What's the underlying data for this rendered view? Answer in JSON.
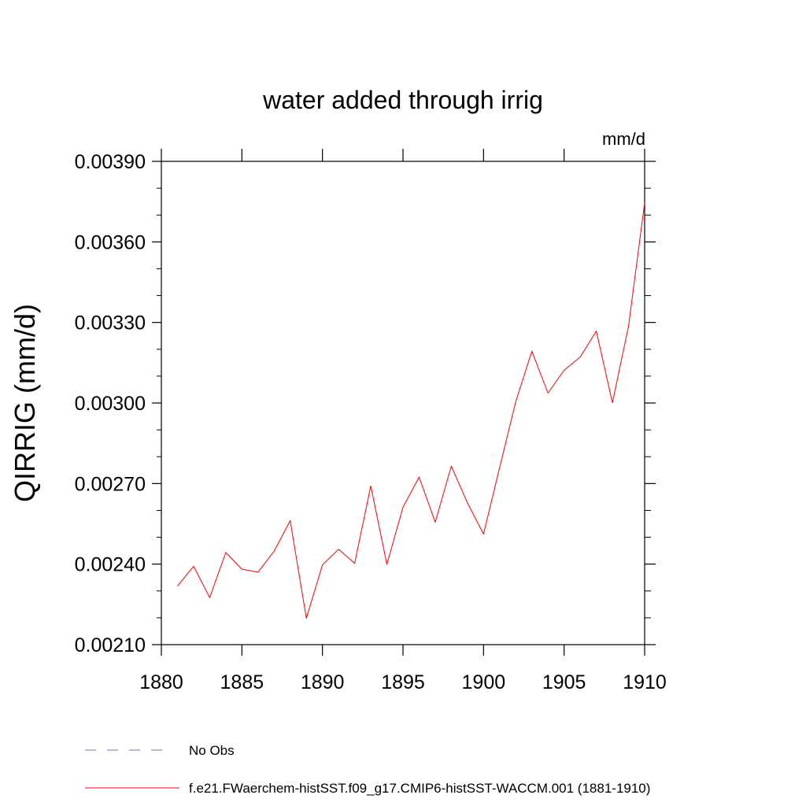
{
  "chart_data": {
    "type": "line",
    "title": "water added through irrig",
    "units_label": "mm/d",
    "ylabel": "QIRRIG  (mm/d)",
    "xlabel": "",
    "xlim": [
      1880,
      1910
    ],
    "ylim": [
      0.0021,
      0.0039
    ],
    "x_ticks": [
      1880,
      1885,
      1890,
      1895,
      1900,
      1905,
      1910
    ],
    "x_tick_labels": [
      "1880",
      "1885",
      "1890",
      "1895",
      "1900",
      "1905",
      "1910"
    ],
    "y_ticks": [
      0.0021,
      0.0024,
      0.0027,
      0.003,
      0.0033,
      0.0036,
      0.0039
    ],
    "y_tick_labels": [
      "0.00210",
      "0.00240",
      "0.00270",
      "0.00300",
      "0.00330",
      "0.00360",
      "0.00390"
    ],
    "grid": false,
    "series": [
      {
        "name": "f.e21.FWaerchem-histSST.f09_g17.CMIP6-histSST-WACCM.001 (1881-1910)",
        "color": "#ff0000",
        "style": "solid",
        "x": [
          1881,
          1882,
          1883,
          1884,
          1885,
          1886,
          1887,
          1888,
          1889,
          1890,
          1891,
          1892,
          1893,
          1894,
          1895,
          1896,
          1897,
          1898,
          1899,
          1900,
          1901,
          1902,
          1903,
          1904,
          1905,
          1906,
          1907,
          1908,
          1909,
          1910
        ],
        "y": [
          0.002318,
          0.002392,
          0.002275,
          0.002443,
          0.002381,
          0.00237,
          0.002448,
          0.002562,
          0.002198,
          0.002397,
          0.002455,
          0.002403,
          0.002691,
          0.002399,
          0.002612,
          0.002724,
          0.002556,
          0.002765,
          0.002628,
          0.002512,
          0.00276,
          0.003005,
          0.003193,
          0.003037,
          0.003122,
          0.003171,
          0.003268,
          0.003001,
          0.003286,
          0.003746
        ]
      }
    ],
    "legend": [
      {
        "label": "No Obs",
        "color": "#7b68c8",
        "style": "dashed"
      },
      {
        "label": "f.e21.FWaerchem-histSST.f09_g17.CMIP6-histSST-WACCM.001 (1881-1910)",
        "color": "#ff0000",
        "style": "solid"
      }
    ],
    "legend_position": "bottom"
  }
}
